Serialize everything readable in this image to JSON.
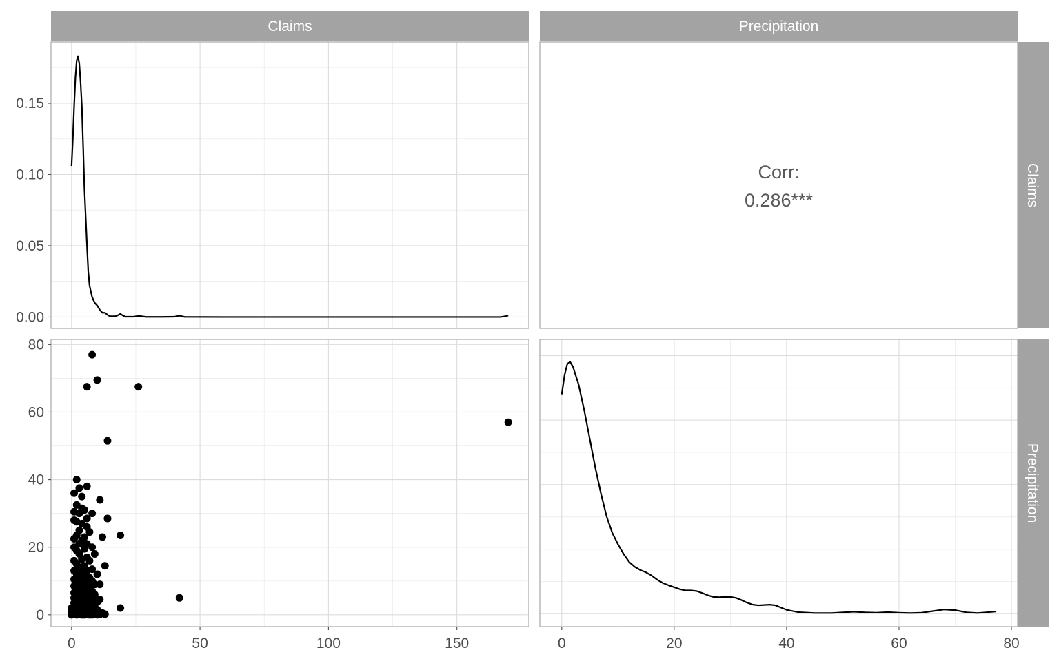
{
  "chart_data": {
    "type": "pairs",
    "variables": [
      "Claims",
      "Precipitation"
    ],
    "strips": {
      "top": [
        "Claims",
        "Precipitation"
      ],
      "right": [
        "Claims",
        "Precipitation"
      ]
    },
    "correlation": {
      "label": "Corr:",
      "value": "0.286***"
    },
    "claims_density": {
      "type": "line",
      "xlim": [
        -8,
        178
      ],
      "ylim": [
        -0.008,
        0.193
      ],
      "x_ticks": [
        0,
        50,
        100,
        150
      ],
      "y_ticks": [
        0.0,
        0.05,
        0.1,
        0.15
      ],
      "y_tick_labels": [
        "0.00",
        "0.05",
        "0.10",
        "0.15"
      ],
      "points": [
        [
          0,
          0.106
        ],
        [
          0.5,
          0.125
        ],
        [
          1,
          0.148
        ],
        [
          1.5,
          0.168
        ],
        [
          2,
          0.18
        ],
        [
          2.5,
          0.183
        ],
        [
          3,
          0.178
        ],
        [
          3.5,
          0.165
        ],
        [
          4,
          0.148
        ],
        [
          4.5,
          0.12
        ],
        [
          5,
          0.09
        ],
        [
          5.5,
          0.07
        ],
        [
          6,
          0.05
        ],
        [
          6.5,
          0.032
        ],
        [
          7,
          0.022
        ],
        [
          8,
          0.014
        ],
        [
          9,
          0.01
        ],
        [
          10,
          0.008
        ],
        [
          11,
          0.005
        ],
        [
          12,
          0.003
        ],
        [
          13,
          0.003
        ],
        [
          14,
          0.0015
        ],
        [
          15,
          0.0005
        ],
        [
          17,
          0.0005
        ],
        [
          18,
          0.0012
        ],
        [
          19,
          0.0022
        ],
        [
          20,
          0.001
        ],
        [
          21,
          0.0002
        ],
        [
          24,
          0.0002
        ],
        [
          26,
          0.0008
        ],
        [
          27,
          0.0006
        ],
        [
          29,
          0.0001
        ],
        [
          35,
          0.0001
        ],
        [
          40,
          0.0002
        ],
        [
          42,
          0.0009
        ],
        [
          44,
          0.0001
        ],
        [
          60,
          0.0
        ],
        [
          100,
          0.0
        ],
        [
          150,
          0.0
        ],
        [
          167,
          0.0
        ],
        [
          169,
          0.0006
        ],
        [
          170,
          0.0011
        ]
      ]
    },
    "scatter": {
      "type": "scatter",
      "xlim": [
        -8,
        178
      ],
      "ylim": [
        -3.5,
        81.5
      ],
      "x_ticks": [
        0,
        50,
        100,
        150
      ],
      "y_ticks": [
        0,
        20,
        40,
        60,
        80
      ],
      "points": [
        [
          8,
          77
        ],
        [
          10,
          69.5
        ],
        [
          6,
          67.5
        ],
        [
          26,
          67.5
        ],
        [
          170,
          57
        ],
        [
          14,
          51.5
        ],
        [
          2,
          40
        ],
        [
          6,
          38
        ],
        [
          3,
          37.5
        ],
        [
          1,
          36
        ],
        [
          4,
          35
        ],
        [
          11,
          34
        ],
        [
          2,
          32.5
        ],
        [
          4,
          31.5
        ],
        [
          5,
          31
        ],
        [
          1,
          30.5
        ],
        [
          8,
          30
        ],
        [
          3,
          30
        ],
        [
          6,
          28.5
        ],
        [
          14,
          28.5
        ],
        [
          1,
          28
        ],
        [
          2,
          27.5
        ],
        [
          4,
          27
        ],
        [
          6,
          26
        ],
        [
          3,
          25
        ],
        [
          7,
          24.5
        ],
        [
          2,
          23.5
        ],
        [
          19,
          23.5
        ],
        [
          12,
          23
        ],
        [
          5,
          23
        ],
        [
          1,
          22.5
        ],
        [
          4,
          22
        ],
        [
          3,
          21
        ],
        [
          6,
          21
        ],
        [
          8,
          20
        ],
        [
          1,
          20
        ],
        [
          5,
          19.5
        ],
        [
          2,
          19
        ],
        [
          9,
          18
        ],
        [
          3,
          18
        ],
        [
          6,
          17
        ],
        [
          4,
          16.5
        ],
        [
          1,
          16
        ],
        [
          7,
          16
        ],
        [
          2,
          15
        ],
        [
          13,
          14.5
        ],
        [
          5,
          14.5
        ],
        [
          3,
          14
        ],
        [
          8,
          13.5
        ],
        [
          1,
          13
        ],
        [
          6,
          13
        ],
        [
          4,
          12.5
        ],
        [
          10,
          12
        ],
        [
          2,
          12
        ],
        [
          5,
          11.5
        ],
        [
          3,
          11
        ],
        [
          7,
          11
        ],
        [
          1,
          10.5
        ],
        [
          8,
          10
        ],
        [
          4,
          10
        ],
        [
          2,
          9.5
        ],
        [
          6,
          9.5
        ],
        [
          11,
          9
        ],
        [
          9,
          9
        ],
        [
          3,
          9
        ],
        [
          5,
          8.5
        ],
        [
          1,
          8.5
        ],
        [
          7,
          8
        ],
        [
          2,
          8
        ],
        [
          4,
          7.5
        ],
        [
          6,
          7.5
        ],
        [
          8,
          7
        ],
        [
          3,
          7
        ],
        [
          1,
          6.5
        ],
        [
          5,
          6.5
        ],
        [
          9,
          6
        ],
        [
          2,
          6
        ],
        [
          4,
          6
        ],
        [
          7,
          5.5
        ],
        [
          42,
          5
        ],
        [
          1,
          5
        ],
        [
          6,
          5
        ],
        [
          11,
          4.5
        ],
        [
          3,
          4.5
        ],
        [
          8,
          4.5
        ],
        [
          5,
          4
        ],
        [
          2,
          4
        ],
        [
          10,
          3.8
        ],
        [
          4,
          3.5
        ],
        [
          7,
          3.5
        ],
        [
          1,
          3.5
        ],
        [
          6,
          3
        ],
        [
          3,
          3
        ],
        [
          9,
          3
        ],
        [
          2,
          2.5
        ],
        [
          5,
          2.5
        ],
        [
          8,
          2.5
        ],
        [
          19,
          2
        ],
        [
          0,
          2
        ],
        [
          4,
          2
        ],
        [
          7,
          2
        ],
        [
          1,
          1.5
        ],
        [
          3,
          1.5
        ],
        [
          6,
          1.5
        ],
        [
          10,
          1.5
        ],
        [
          2,
          1
        ],
        [
          5,
          1
        ],
        [
          8,
          1
        ],
        [
          0,
          0.8
        ],
        [
          4,
          0.7
        ],
        [
          12,
          0.5
        ],
        [
          13,
          0.2
        ],
        [
          1,
          0.3
        ],
        [
          3,
          0.3
        ],
        [
          6,
          0.3
        ],
        [
          9,
          0.2
        ],
        [
          11,
          0.1
        ],
        [
          0,
          0
        ],
        [
          2,
          0
        ],
        [
          5,
          0
        ],
        [
          7,
          0
        ],
        [
          8,
          0
        ],
        [
          10,
          0
        ],
        [
          4,
          0
        ]
      ]
    },
    "precip_density": {
      "type": "line",
      "xlim": [
        -3.9,
        81.1
      ],
      "ylim": [
        -0.004,
        0.085
      ],
      "x_ticks": [
        0,
        20,
        40,
        60,
        80
      ],
      "points": [
        [
          0,
          0.068
        ],
        [
          0.5,
          0.074
        ],
        [
          1,
          0.0775
        ],
        [
          1.5,
          0.078
        ],
        [
          2,
          0.0765
        ],
        [
          3,
          0.071
        ],
        [
          4,
          0.063
        ],
        [
          5,
          0.054
        ],
        [
          6,
          0.045
        ],
        [
          7,
          0.037
        ],
        [
          8,
          0.03
        ],
        [
          9,
          0.025
        ],
        [
          10,
          0.0215
        ],
        [
          11,
          0.0185
        ],
        [
          12,
          0.016
        ],
        [
          13,
          0.0145
        ],
        [
          14,
          0.0135
        ],
        [
          15,
          0.0128
        ],
        [
          16,
          0.0118
        ],
        [
          17,
          0.0105
        ],
        [
          18,
          0.0095
        ],
        [
          19,
          0.0088
        ],
        [
          20,
          0.0082
        ],
        [
          21,
          0.0076
        ],
        [
          22,
          0.0072
        ],
        [
          23,
          0.0072
        ],
        [
          24,
          0.007
        ],
        [
          25,
          0.0064
        ],
        [
          26,
          0.0057
        ],
        [
          27,
          0.0052
        ],
        [
          28,
          0.0051
        ],
        [
          29,
          0.0052
        ],
        [
          30,
          0.0052
        ],
        [
          31,
          0.0049
        ],
        [
          32,
          0.0042
        ],
        [
          33,
          0.0034
        ],
        [
          34,
          0.0028
        ],
        [
          35,
          0.0026
        ],
        [
          36,
          0.0027
        ],
        [
          37,
          0.0028
        ],
        [
          38,
          0.0026
        ],
        [
          39,
          0.0019
        ],
        [
          40,
          0.0012
        ],
        [
          42,
          0.0005
        ],
        [
          45,
          0.0002
        ],
        [
          48,
          0.0002
        ],
        [
          50,
          0.0004
        ],
        [
          52,
          0.0006
        ],
        [
          54,
          0.0004
        ],
        [
          56,
          0.0003
        ],
        [
          58,
          0.0005
        ],
        [
          60,
          0.0003
        ],
        [
          62,
          0.0002
        ],
        [
          64,
          0.0003
        ],
        [
          66,
          0.0008
        ],
        [
          68,
          0.0013
        ],
        [
          70,
          0.0011
        ],
        [
          72,
          0.0004
        ],
        [
          74,
          0.0002
        ],
        [
          76,
          0.0005
        ],
        [
          77.3,
          0.0007
        ]
      ]
    },
    "colors": {
      "strip": "#a3a3a3",
      "line": "#000000",
      "point": "#000000",
      "panel_border": "#b3b3b3"
    }
  }
}
